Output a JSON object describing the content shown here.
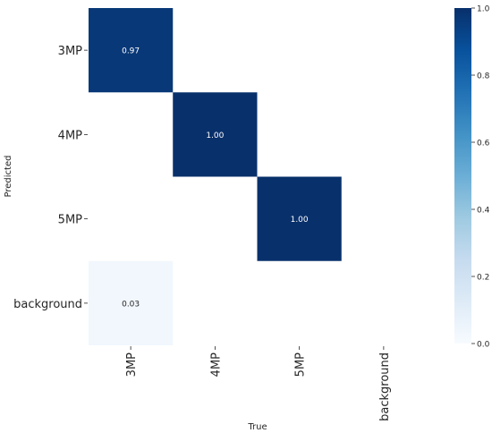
{
  "chart_data": {
    "type": "heatmap",
    "title": "",
    "xlabel": "True",
    "ylabel": "Predicted",
    "x_categories": [
      "3MP",
      "4MP",
      "5MP",
      "background"
    ],
    "y_categories": [
      "3MP",
      "4MP",
      "5MP",
      "background"
    ],
    "values": [
      [
        0.97,
        null,
        null,
        null
      ],
      [
        null,
        1.0,
        null,
        null
      ],
      [
        null,
        null,
        1.0,
        null
      ],
      [
        0.03,
        null,
        null,
        null
      ]
    ],
    "value_labels": [
      [
        "0.97",
        "",
        "",
        ""
      ],
      [
        "",
        "1.00",
        "",
        ""
      ],
      [
        "",
        "",
        "1.00",
        ""
      ],
      [
        "0.03",
        "",
        "",
        ""
      ]
    ],
    "colorbar": {
      "range": [
        0,
        1
      ],
      "ticks": [
        0.0,
        0.2,
        0.4,
        0.6,
        0.8,
        1.0
      ],
      "tick_labels": [
        "0.0",
        "0.2",
        "0.4",
        "0.6",
        "0.8",
        "1.0"
      ],
      "colormap": "Blues",
      "low_color": "#f7fbff",
      "high_color": "#08306b"
    },
    "grid": false,
    "legend": "colorbar-right"
  }
}
